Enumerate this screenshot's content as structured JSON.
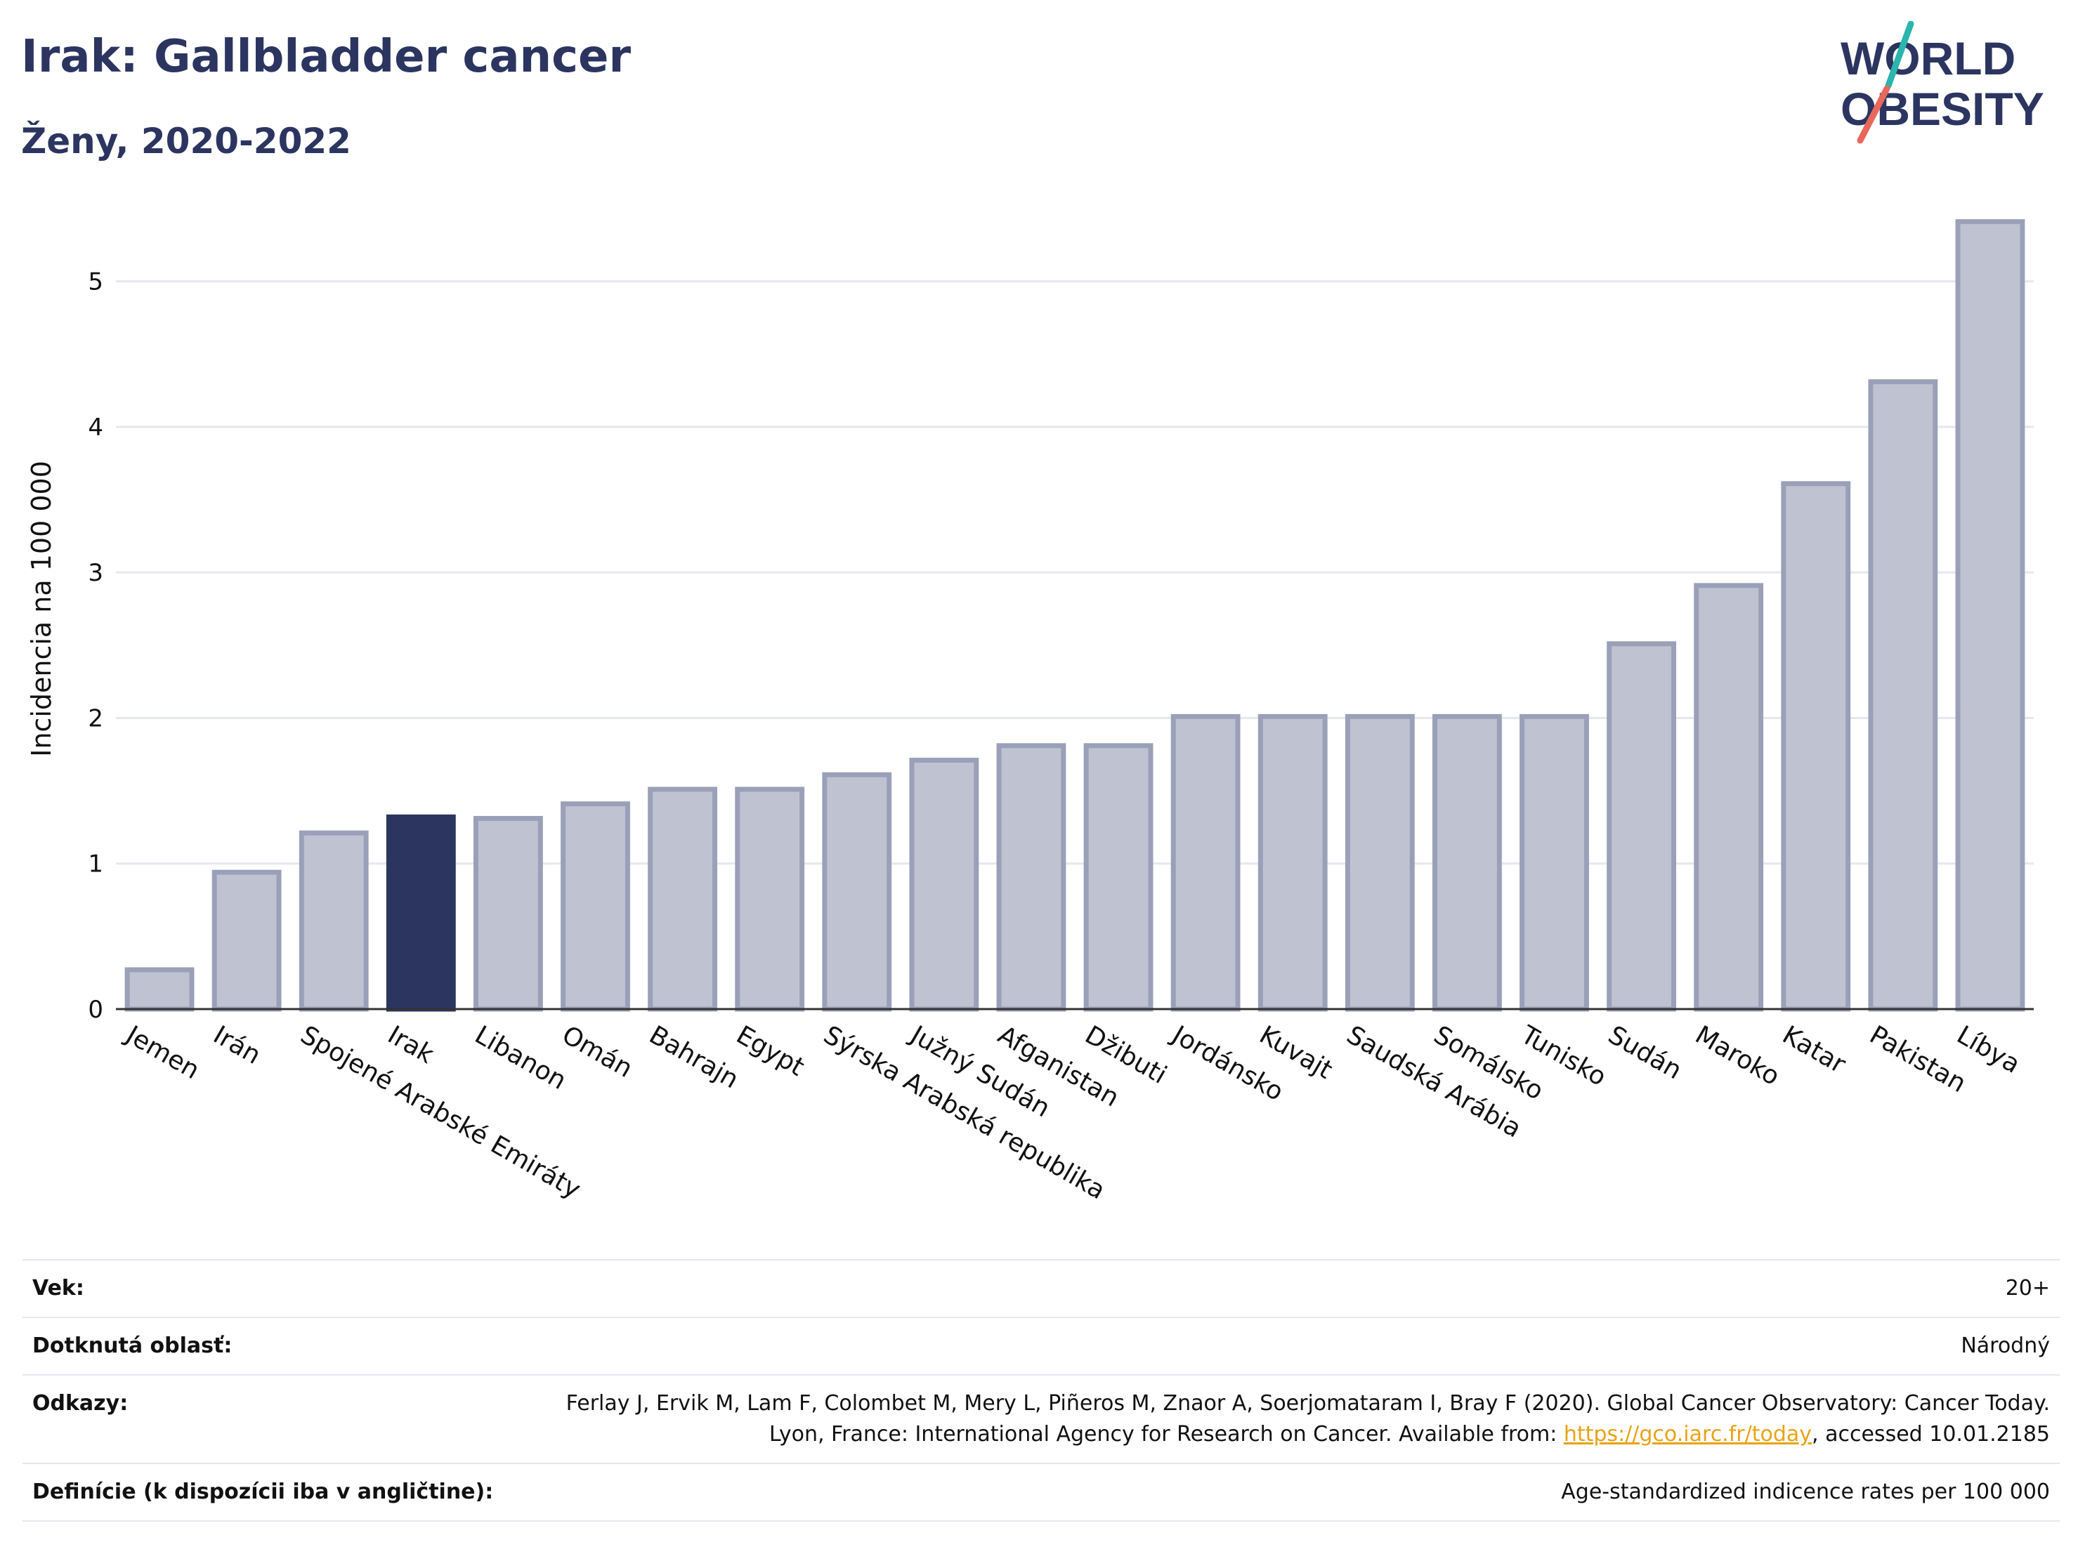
{
  "header": {
    "title": "Irak: Gallbladder cancer",
    "subtitle": "Ženy, 2020-2022"
  },
  "logo": {
    "line1_pre": "W",
    "line1_o": "O",
    "line1_post": "RLD",
    "line2": "BESITY",
    "line2_o": "O"
  },
  "colors": {
    "bar": "#bfc3d1",
    "bar_stroke": "#9aa0b8",
    "highlight": "#2b3560",
    "title": "#2b3560",
    "logo_teal": "#2bb5ad",
    "logo_coral": "#e8685a",
    "link": "#e8a317"
  },
  "chart_data": {
    "type": "bar",
    "categories": [
      "Jemen",
      "Irán",
      "Spojené Arabské Emiráty",
      "Irak",
      "Libanon",
      "Omán",
      "Bahrajn",
      "Egypt",
      "Sýrska Arabská republika",
      "Južný Sudán",
      "Afganistan",
      "Džibuti",
      "Jordánsko",
      "Kuvajt",
      "Saudská Arábia",
      "Somálsko",
      "Tunisko",
      "Sudán",
      "Maroko",
      "Katar",
      "Pakistan",
      "Líbya"
    ],
    "values": [
      0.27,
      0.94,
      1.21,
      1.32,
      1.31,
      1.41,
      1.51,
      1.51,
      1.61,
      1.71,
      1.81,
      1.81,
      2.01,
      2.01,
      2.01,
      2.01,
      2.01,
      2.51,
      2.91,
      3.61,
      4.31,
      5.41
    ],
    "highlight": "Irak",
    "ylabel": "Incidencia na 100 000",
    "xlabel": "",
    "ylim": [
      0,
      5.5
    ],
    "yticks": [
      0,
      1,
      2,
      3,
      4,
      5
    ],
    "grid": true
  },
  "info": {
    "rows": [
      {
        "label": "Vek:",
        "value": "20+"
      },
      {
        "label": "Dotknutá oblasť:",
        "value": "Národný"
      },
      {
        "label": "Odkazy:",
        "value_pre": "Ferlay J, Ervik M, Lam F, Colombet M, Mery L, Piñeros M, Znaor A, Soerjomataram I, Bray F (2020). Global Cancer Observatory: Cancer Today. Lyon, France: International Agency for Research on Cancer. Available from: ",
        "link": "https://gco.iarc.fr/today",
        "value_post": ", accessed 10.01.2185"
      },
      {
        "label": "Definície (k dispozícii iba v angličtine):",
        "value": "Age-standardized indicence rates per 100 000"
      }
    ]
  }
}
